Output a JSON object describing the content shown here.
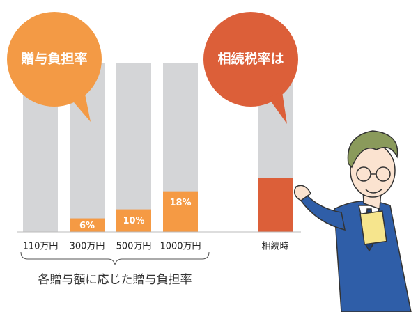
{
  "chart_data": {
    "type": "bar",
    "categories": [
      "110万円",
      "300万円",
      "500万円",
      "1000万円",
      "相続時"
    ],
    "values": [
      0,
      6,
      10,
      18,
      24
    ],
    "value_labels": [
      null,
      "6%",
      "10%",
      "18%",
      null
    ],
    "colors": [
      "#f59a44",
      "#f59a44",
      "#f59a44",
      "#f59a44",
      "#dc5f39"
    ],
    "ylim": [
      0,
      75
    ],
    "bubbles": [
      {
        "text": "贈与負担率",
        "color": "#f39a45"
      },
      {
        "text": "相続税率は",
        "color": "#dc5f39"
      }
    ],
    "bracket_label": "各贈与額に応じた贈与負担率"
  }
}
